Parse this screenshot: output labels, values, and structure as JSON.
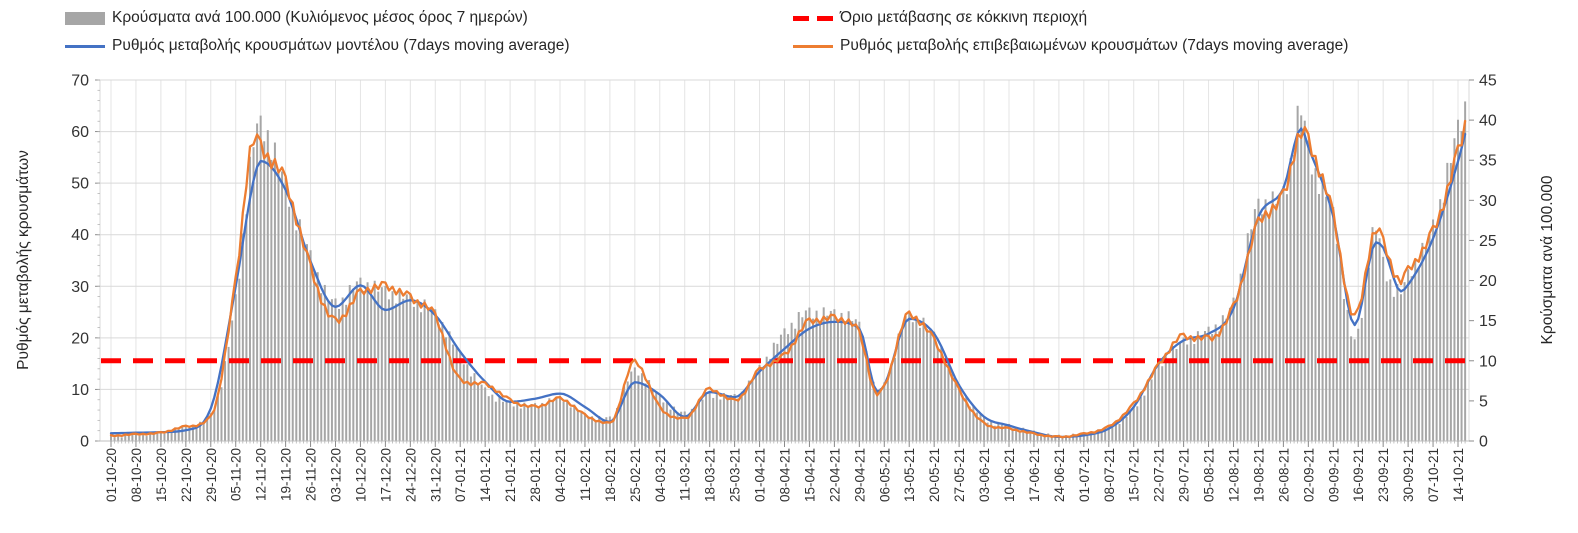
{
  "legend": {
    "items": [
      {
        "id": "cases",
        "label": "Κρούσματα ανά 100.000 (Κυλιόμενος μέσος όρος 7 ημερών)",
        "color": "#A6A6A6",
        "swatch": "bar"
      },
      {
        "id": "threshold",
        "label": "Όριο μετάβασης σε κόκκινη περιοχή",
        "color": "#FF0000",
        "swatch": "dashed-line"
      },
      {
        "id": "model",
        "label": "Ρυθμός μεταβολής κρουσμάτων μοντέλου (7days moving average)",
        "color": "#4472C4",
        "swatch": "line"
      },
      {
        "id": "confirmed",
        "label": "Ρυθμός μεταβολής επιβεβαιωμένων κρουσμάτων (7days moving average)",
        "color": "#ED7D31",
        "swatch": "line"
      }
    ]
  },
  "chart_data": {
    "type": "mixed-bar-line",
    "grid": true,
    "x_axis": {
      "days_per_tick": 7,
      "tick_labels": [
        "01-10-20",
        "08-10-20",
        "15-10-20",
        "22-10-20",
        "29-10-20",
        "05-11-20",
        "12-11-20",
        "19-11-20",
        "26-11-20",
        "03-12-20",
        "10-12-20",
        "17-12-20",
        "24-12-20",
        "31-12-20",
        "07-01-21",
        "14-01-21",
        "21-01-21",
        "28-01-21",
        "04-02-21",
        "11-02-21",
        "18-02-21",
        "25-02-21",
        "04-03-21",
        "11-03-21",
        "18-03-21",
        "25-03-21",
        "01-04-21",
        "08-04-21",
        "15-04-21",
        "22-04-21",
        "29-04-21",
        "06-05-21",
        "13-05-21",
        "20-05-21",
        "27-05-21",
        "03-06-21",
        "10-06-21",
        "17-06-21",
        "24-06-21",
        "01-07-21",
        "08-07-21",
        "15-07-21",
        "22-07-21",
        "29-07-21",
        "05-08-21",
        "12-08-21",
        "19-08-21",
        "26-08-21",
        "02-09-21",
        "09-09-21",
        "16-09-21",
        "23-09-21",
        "30-09-21",
        "07-10-21",
        "14-10-21"
      ]
    },
    "y_left": {
      "title": "Ρυθμός μεταβολής κρουσμάτων",
      "min": 0,
      "max": 70,
      "ticks": [
        0,
        10,
        20,
        30,
        40,
        50,
        60,
        70
      ],
      "minor_step": 2
    },
    "y_right": {
      "title": "Κρούσματα ανά 100.000",
      "min": 0,
      "max": 45,
      "ticks": [
        0,
        5,
        10,
        15,
        20,
        25,
        30,
        35,
        40,
        45
      ]
    },
    "threshold": {
      "label": "Όριο μετάβασης σε κόκκινη περιοχή",
      "axis": "right",
      "value": 10,
      "color": "#FF0000"
    },
    "series": [
      {
        "name": "Κρούσματα ανά 100.000 (Κυλιόμενος μέσος όρος 7 ημερών)",
        "type": "bar",
        "axis": "right",
        "color": "#A6A6A6",
        "points": [
          [
            0,
            0.6
          ],
          [
            7,
            0.8
          ],
          [
            14,
            1.0
          ],
          [
            21,
            1.8
          ],
          [
            28,
            3.2
          ],
          [
            35,
            17.5
          ],
          [
            40,
            37
          ],
          [
            42,
            39
          ],
          [
            49,
            31.5
          ],
          [
            56,
            22.8
          ],
          [
            63,
            17
          ],
          [
            70,
            19.5
          ],
          [
            77,
            18.5
          ],
          [
            84,
            17.6
          ],
          [
            91,
            15.7
          ],
          [
            98,
            10.7
          ],
          [
            105,
            6.3
          ],
          [
            112,
            4.7
          ],
          [
            119,
            4.4
          ],
          [
            126,
            5.3
          ],
          [
            133,
            3.2
          ],
          [
            140,
            2.8
          ],
          [
            147,
            8.7
          ],
          [
            154,
            5.5
          ],
          [
            161,
            3.4
          ],
          [
            168,
            5.7
          ],
          [
            175,
            5.5
          ],
          [
            182,
            9.0
          ],
          [
            189,
            13.4
          ],
          [
            196,
            15.9
          ],
          [
            203,
            15.7
          ],
          [
            210,
            14.2
          ],
          [
            215,
            6.2
          ],
          [
            217,
            6.9
          ],
          [
            224,
            15.5
          ],
          [
            231,
            13.0
          ],
          [
            238,
            6.7
          ],
          [
            245,
            2.8
          ],
          [
            252,
            1.9
          ],
          [
            259,
            1.1
          ],
          [
            266,
            0.6
          ],
          [
            273,
            0.9
          ],
          [
            280,
            1.7
          ],
          [
            287,
            4.0
          ],
          [
            294,
            9.2
          ],
          [
            301,
            12.3
          ],
          [
            308,
            13.6
          ],
          [
            315,
            17.1
          ],
          [
            322,
            29.0
          ],
          [
            329,
            30.5
          ],
          [
            334,
            41.0
          ],
          [
            336,
            36.0
          ],
          [
            343,
            28.0
          ],
          [
            349,
            12.3
          ],
          [
            355,
            26.5
          ],
          [
            357,
            22.0
          ],
          [
            362,
            18.5
          ],
          [
            364,
            20.5
          ],
          [
            371,
            26.5
          ],
          [
            378,
            38.5
          ],
          [
            380,
            41.5
          ]
        ]
      },
      {
        "name": "Ρυθμός μεταβολής κρουσμάτων μοντέλου (7days moving average)",
        "type": "line",
        "axis": "left",
        "color": "#4472C4",
        "points": [
          [
            0,
            1.5
          ],
          [
            7,
            1.6
          ],
          [
            14,
            1.7
          ],
          [
            21,
            2.1
          ],
          [
            28,
            6.3
          ],
          [
            35,
            30.0
          ],
          [
            40,
            50.5
          ],
          [
            42,
            54.3
          ],
          [
            49,
            48.7
          ],
          [
            56,
            34.8
          ],
          [
            63,
            26.0
          ],
          [
            70,
            30.2
          ],
          [
            77,
            25.4
          ],
          [
            84,
            27.3
          ],
          [
            91,
            24.4
          ],
          [
            98,
            17.3
          ],
          [
            105,
            11.5
          ],
          [
            112,
            7.6
          ],
          [
            119,
            8.2
          ],
          [
            126,
            9.2
          ],
          [
            133,
            6.6
          ],
          [
            140,
            3.7
          ],
          [
            147,
            11.4
          ],
          [
            154,
            9.0
          ],
          [
            161,
            4.7
          ],
          [
            168,
            9.5
          ],
          [
            175,
            8.5
          ],
          [
            182,
            13.5
          ],
          [
            189,
            17.9
          ],
          [
            196,
            21.8
          ],
          [
            203,
            23.1
          ],
          [
            210,
            21.8
          ],
          [
            215,
            9.6
          ],
          [
            217,
            10.8
          ],
          [
            224,
            23.7
          ],
          [
            231,
            20.8
          ],
          [
            238,
            10.8
          ],
          [
            245,
            4.7
          ],
          [
            252,
            3.0
          ],
          [
            259,
            1.7
          ],
          [
            266,
            0.8
          ],
          [
            273,
            1.1
          ],
          [
            280,
            2.4
          ],
          [
            287,
            6.6
          ],
          [
            294,
            15.0
          ],
          [
            301,
            19.5
          ],
          [
            308,
            20.8
          ],
          [
            315,
            25.7
          ],
          [
            322,
            43.5
          ],
          [
            329,
            49.0
          ],
          [
            334,
            60.6
          ],
          [
            336,
            57.0
          ],
          [
            343,
            43.5
          ],
          [
            349,
            22.5
          ],
          [
            355,
            38.5
          ],
          [
            357,
            37.5
          ],
          [
            362,
            29.0
          ],
          [
            364,
            30.3
          ],
          [
            371,
            39.3
          ],
          [
            378,
            54.2
          ],
          [
            380,
            59.5
          ]
        ]
      },
      {
        "name": "Ρυθμός μεταβολής επιβεβαιωμένων κρουσμάτων (7days moving average)",
        "type": "line",
        "axis": "left",
        "color": "#ED7D31",
        "points": [
          [
            0,
            1.0
          ],
          [
            7,
            1.3
          ],
          [
            14,
            1.6
          ],
          [
            21,
            2.8
          ],
          [
            28,
            4.7
          ],
          [
            35,
            31.0
          ],
          [
            40,
            58.2
          ],
          [
            42,
            56.8
          ],
          [
            49,
            50.0
          ],
          [
            56,
            33.5
          ],
          [
            63,
            23.2
          ],
          [
            70,
            28.7
          ],
          [
            77,
            29.9
          ],
          [
            84,
            27.7
          ],
          [
            91,
            24.1
          ],
          [
            98,
            11.8
          ],
          [
            105,
            11.0
          ],
          [
            112,
            7.9
          ],
          [
            119,
            6.6
          ],
          [
            126,
            8.2
          ],
          [
            133,
            5.0
          ],
          [
            140,
            3.4
          ],
          [
            147,
            15.3
          ],
          [
            154,
            6.5
          ],
          [
            161,
            4.3
          ],
          [
            168,
            10.0
          ],
          [
            175,
            7.8
          ],
          [
            182,
            13.8
          ],
          [
            189,
            16.6
          ],
          [
            196,
            23.1
          ],
          [
            203,
            23.7
          ],
          [
            210,
            20.8
          ],
          [
            215,
            9.0
          ],
          [
            217,
            10.5
          ],
          [
            224,
            24.4
          ],
          [
            231,
            19.5
          ],
          [
            238,
            9.8
          ],
          [
            245,
            3.4
          ],
          [
            252,
            2.4
          ],
          [
            259,
            1.4
          ],
          [
            266,
            0.8
          ],
          [
            273,
            1.4
          ],
          [
            280,
            2.8
          ],
          [
            287,
            7.2
          ],
          [
            294,
            14.7
          ],
          [
            301,
            20.2
          ],
          [
            308,
            19.8
          ],
          [
            315,
            26.0
          ],
          [
            322,
            42.2
          ],
          [
            329,
            47.5
          ],
          [
            334,
            59.5
          ],
          [
            336,
            58.0
          ],
          [
            343,
            43.5
          ],
          [
            349,
            23.8
          ],
          [
            355,
            40.8
          ],
          [
            357,
            38.5
          ],
          [
            362,
            30.8
          ],
          [
            364,
            33.0
          ],
          [
            371,
            40.6
          ],
          [
            378,
            55.8
          ],
          [
            380,
            61.5
          ]
        ]
      }
    ]
  }
}
